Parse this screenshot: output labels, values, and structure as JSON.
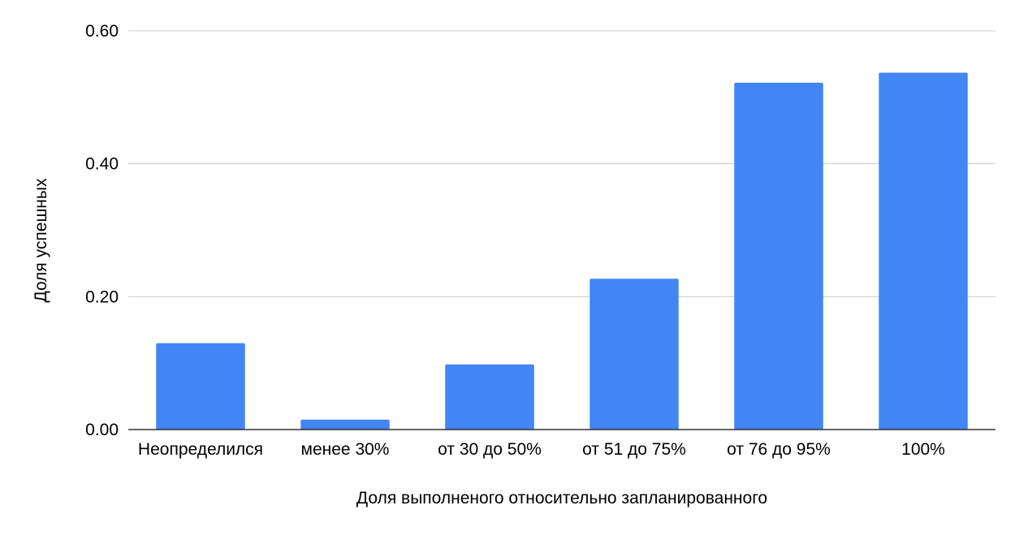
{
  "chart_data": {
    "type": "bar",
    "title": "",
    "xlabel": "Доля выполненого относительно запланированного",
    "ylabel": "Доля успешных",
    "categories": [
      "Неопределился",
      "менее 30%",
      "от 30 до 50%",
      "от 51 до 75%",
      "от 76 до 95%",
      "100%"
    ],
    "values": [
      0.13,
      0.015,
      0.098,
      0.227,
      0.522,
      0.537
    ],
    "ylim": [
      0,
      0.6
    ],
    "yticks": [
      "0.00",
      "0.20",
      "0.40",
      "0.60"
    ],
    "ytick_values": [
      0,
      0.2,
      0.4,
      0.6
    ],
    "grid": true,
    "legend": "none",
    "bar_color": "#4285f4",
    "gridline_color": "#cccccc",
    "axis_color": "#333333"
  }
}
